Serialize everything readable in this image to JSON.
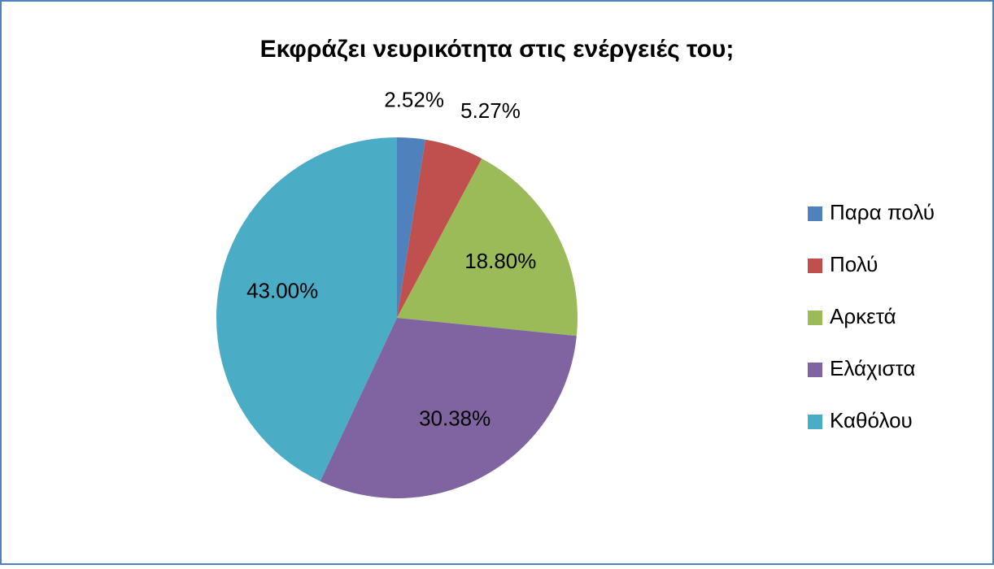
{
  "chart_data": {
    "type": "pie",
    "title": "Εκφράζει νευρικότητα στις ενέργειές του;",
    "categories": [
      "Παρα πολύ",
      "Πολύ",
      "Αρκετά",
      "Ελάχιστα",
      "Καθόλου"
    ],
    "values": [
      2.52,
      5.27,
      18.8,
      30.38,
      43.0
    ],
    "value_labels": [
      "2.52%",
      "5.27%",
      "18.80%",
      "30.38%",
      "43.00%"
    ],
    "colors": [
      "#4f81bd",
      "#c0504d",
      "#9bbb59",
      "#8064a2",
      "#4bacc6"
    ],
    "legend": "right"
  }
}
